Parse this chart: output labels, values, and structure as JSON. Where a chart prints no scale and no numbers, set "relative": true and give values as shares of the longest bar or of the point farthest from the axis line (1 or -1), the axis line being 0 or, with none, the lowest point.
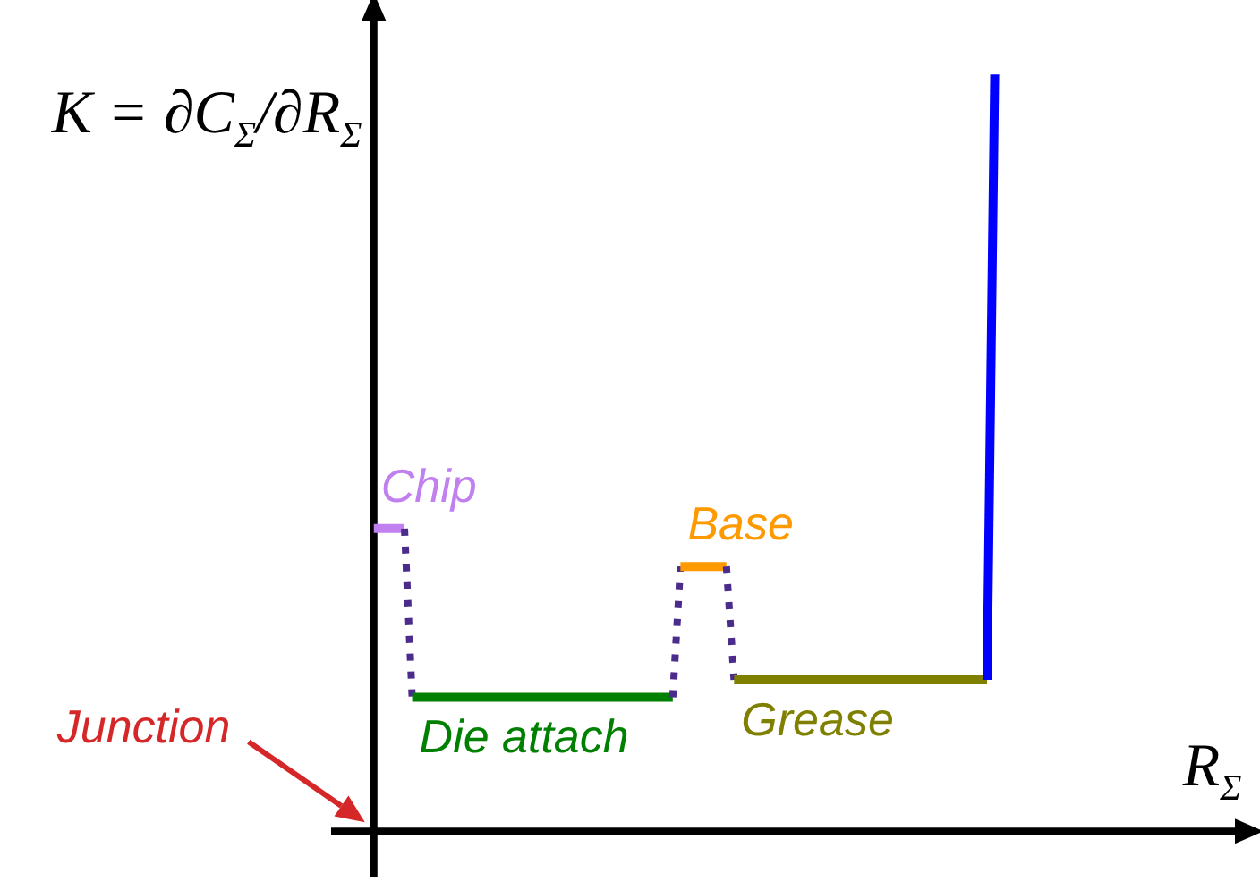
{
  "chart_data": {
    "type": "line",
    "relative": true,
    "xlabel": "R$_{Σ}$",
    "ylabel": "K = ∂C$_{Σ}$/∂R$_{Σ}$",
    "annotations": [
      "Junction"
    ],
    "categories": [
      null,
      null,
      null,
      null,
      null,
      null,
      null,
      null,
      null,
      null,
      null,
      null,
      null,
      null,
      null,
      null,
      null,
      null,
      null,
      null,
      null,
      null,
      null,
      null,
      null,
      null,
      null,
      null,
      null,
      null,
      null,
      null,
      null,
      null,
      null,
      null,
      null,
      null,
      null,
      null,
      null,
      null,
      null,
      null,
      null,
      null,
      null,
      null,
      null,
      null,
      null,
      null,
      null,
      null,
      null,
      null,
      null,
      null,
      null,
      null,
      null,
      null,
      null,
      null,
      null,
      null,
      null,
      null,
      null,
      null,
      null,
      null,
      null,
      null,
      null,
      null,
      null,
      null,
      null,
      null,
      null,
      null
    ],
    "series": [
      {
        "name": "Chip",
        "color": "#c080f0",
        "values": [
          0.4,
          0.4,
          0.4,
          0.4,
          0.4,
          null,
          null,
          null,
          null,
          null,
          null,
          null,
          null,
          null,
          null,
          null,
          null,
          null,
          null,
          null,
          null,
          null,
          null,
          null,
          null,
          null,
          null,
          null,
          null,
          null,
          null,
          null,
          null,
          null,
          null,
          null,
          null,
          null,
          null,
          null,
          null,
          null,
          null,
          null,
          null,
          null,
          null,
          null,
          null,
          null,
          null,
          null,
          null,
          null,
          null,
          null,
          null,
          null,
          null,
          null,
          null,
          null,
          null,
          null,
          null,
          null,
          null,
          null,
          null,
          null,
          null,
          null,
          null,
          null,
          null,
          null,
          null,
          null,
          null,
          null,
          null,
          null
        ]
      },
      {
        "color": "#4b2c8c",
        "line_style": "dotted",
        "values": [
          null,
          null,
          null,
          null,
          0.4,
          0.177,
          null,
          null,
          null,
          null,
          null,
          null,
          null,
          null,
          null,
          null,
          null,
          null,
          null,
          null,
          null,
          null,
          null,
          null,
          null,
          null,
          null,
          null,
          null,
          null,
          null,
          null,
          null,
          null,
          null,
          null,
          null,
          null,
          null,
          null,
          null,
          null,
          null,
          null,
          null,
          null,
          null,
          null,
          null,
          null,
          null,
          null,
          null,
          null,
          null,
          null,
          null,
          null,
          null,
          null,
          null,
          null,
          null,
          null,
          null,
          null,
          null,
          null,
          null,
          null,
          null,
          null,
          null,
          null,
          null,
          null,
          null,
          null,
          null,
          null,
          null,
          null
        ]
      },
      {
        "name": "Die attach",
        "color": "#008000",
        "values": [
          null,
          null,
          null,
          null,
          null,
          0.177,
          0.177,
          0.177,
          0.177,
          0.177,
          0.177,
          0.177,
          0.177,
          0.177,
          0.177,
          0.177,
          0.177,
          0.177,
          0.177,
          0.177,
          0.177,
          0.177,
          0.177,
          0.177,
          0.177,
          0.177,
          0.177,
          0.177,
          0.177,
          0.177,
          0.177,
          0.177,
          0.177,
          0.177,
          0.177,
          0.177,
          0.177,
          0.177,
          0.177,
          0.177,
          null,
          null,
          null,
          null,
          null,
          null,
          null,
          null,
          null,
          null,
          null,
          null,
          null,
          null,
          null,
          null,
          null,
          null,
          null,
          null,
          null,
          null,
          null,
          null,
          null,
          null,
          null,
          null,
          null,
          null,
          null,
          null,
          null,
          null,
          null,
          null,
          null,
          null,
          null,
          null,
          null,
          null
        ]
      },
      {
        "color": "#4b2c8c",
        "line_style": "dotted",
        "values": [
          null,
          null,
          null,
          null,
          null,
          null,
          null,
          null,
          null,
          null,
          null,
          null,
          null,
          null,
          null,
          null,
          null,
          null,
          null,
          null,
          null,
          null,
          null,
          null,
          null,
          null,
          null,
          null,
          null,
          null,
          null,
          null,
          null,
          null,
          null,
          null,
          null,
          null,
          null,
          0.177,
          0.35,
          null,
          null,
          null,
          null,
          null,
          null,
          null,
          null,
          null,
          null,
          null,
          null,
          null,
          null,
          null,
          null,
          null,
          null,
          null,
          null,
          null,
          null,
          null,
          null,
          null,
          null,
          null,
          null,
          null,
          null,
          null,
          null,
          null,
          null,
          null,
          null,
          null,
          null,
          null,
          null,
          null
        ]
      },
      {
        "name": "Base",
        "color": "#ff9900",
        "values": [
          null,
          null,
          null,
          null,
          null,
          null,
          null,
          null,
          null,
          null,
          null,
          null,
          null,
          null,
          null,
          null,
          null,
          null,
          null,
          null,
          null,
          null,
          null,
          null,
          null,
          null,
          null,
          null,
          null,
          null,
          null,
          null,
          null,
          null,
          null,
          null,
          null,
          null,
          null,
          null,
          0.35,
          0.35,
          0.35,
          0.35,
          0.35,
          0.35,
          0.35,
          null,
          null,
          null,
          null,
          null,
          null,
          null,
          null,
          null,
          null,
          null,
          null,
          null,
          null,
          null,
          null,
          null,
          null,
          null,
          null,
          null,
          null,
          null,
          null,
          null,
          null,
          null,
          null,
          null,
          null,
          null,
          null,
          null,
          null,
          null
        ]
      },
      {
        "color": "#4b2c8c",
        "line_style": "dotted",
        "values": [
          null,
          null,
          null,
          null,
          null,
          null,
          null,
          null,
          null,
          null,
          null,
          null,
          null,
          null,
          null,
          null,
          null,
          null,
          null,
          null,
          null,
          null,
          null,
          null,
          null,
          null,
          null,
          null,
          null,
          null,
          null,
          null,
          null,
          null,
          null,
          null,
          null,
          null,
          null,
          null,
          null,
          null,
          null,
          null,
          null,
          null,
          0.35,
          0.2,
          null,
          null,
          null,
          null,
          null,
          null,
          null,
          null,
          null,
          null,
          null,
          null,
          null,
          null,
          null,
          null,
          null,
          null,
          null,
          null,
          null,
          null,
          null,
          null,
          null,
          null,
          null,
          null,
          null,
          null,
          null,
          null,
          null,
          null
        ]
      },
      {
        "name": "Grease",
        "color": "#808000",
        "values": [
          null,
          null,
          null,
          null,
          null,
          null,
          null,
          null,
          null,
          null,
          null,
          null,
          null,
          null,
          null,
          null,
          null,
          null,
          null,
          null,
          null,
          null,
          null,
          null,
          null,
          null,
          null,
          null,
          null,
          null,
          null,
          null,
          null,
          null,
          null,
          null,
          null,
          null,
          null,
          null,
          null,
          null,
          null,
          null,
          null,
          null,
          null,
          0.2,
          0.2,
          0.2,
          0.2,
          0.2,
          0.2,
          0.2,
          0.2,
          0.2,
          0.2,
          0.2,
          0.2,
          0.2,
          0.2,
          0.2,
          0.2,
          0.2,
          0.2,
          0.2,
          0.2,
          0.2,
          0.2,
          0.2,
          0.2,
          0.2,
          0.2,
          0.2,
          0.2,
          0.2,
          0.2,
          0.2,
          0.2,
          0.2,
          0.2,
          null
        ]
      },
      {
        "color": "#0000ff",
        "values": [
          null,
          null,
          null,
          null,
          null,
          null,
          null,
          null,
          null,
          null,
          null,
          null,
          null,
          null,
          null,
          null,
          null,
          null,
          null,
          null,
          null,
          null,
          null,
          null,
          null,
          null,
          null,
          null,
          null,
          null,
          null,
          null,
          null,
          null,
          null,
          null,
          null,
          null,
          null,
          null,
          null,
          null,
          null,
          null,
          null,
          null,
          null,
          null,
          null,
          null,
          null,
          null,
          null,
          null,
          null,
          null,
          null,
          null,
          null,
          null,
          null,
          null,
          null,
          null,
          null,
          null,
          null,
          null,
          null,
          null,
          null,
          null,
          null,
          null,
          null,
          null,
          null,
          null,
          null,
          null,
          0.2,
          1.0
        ]
      }
    ]
  }
}
